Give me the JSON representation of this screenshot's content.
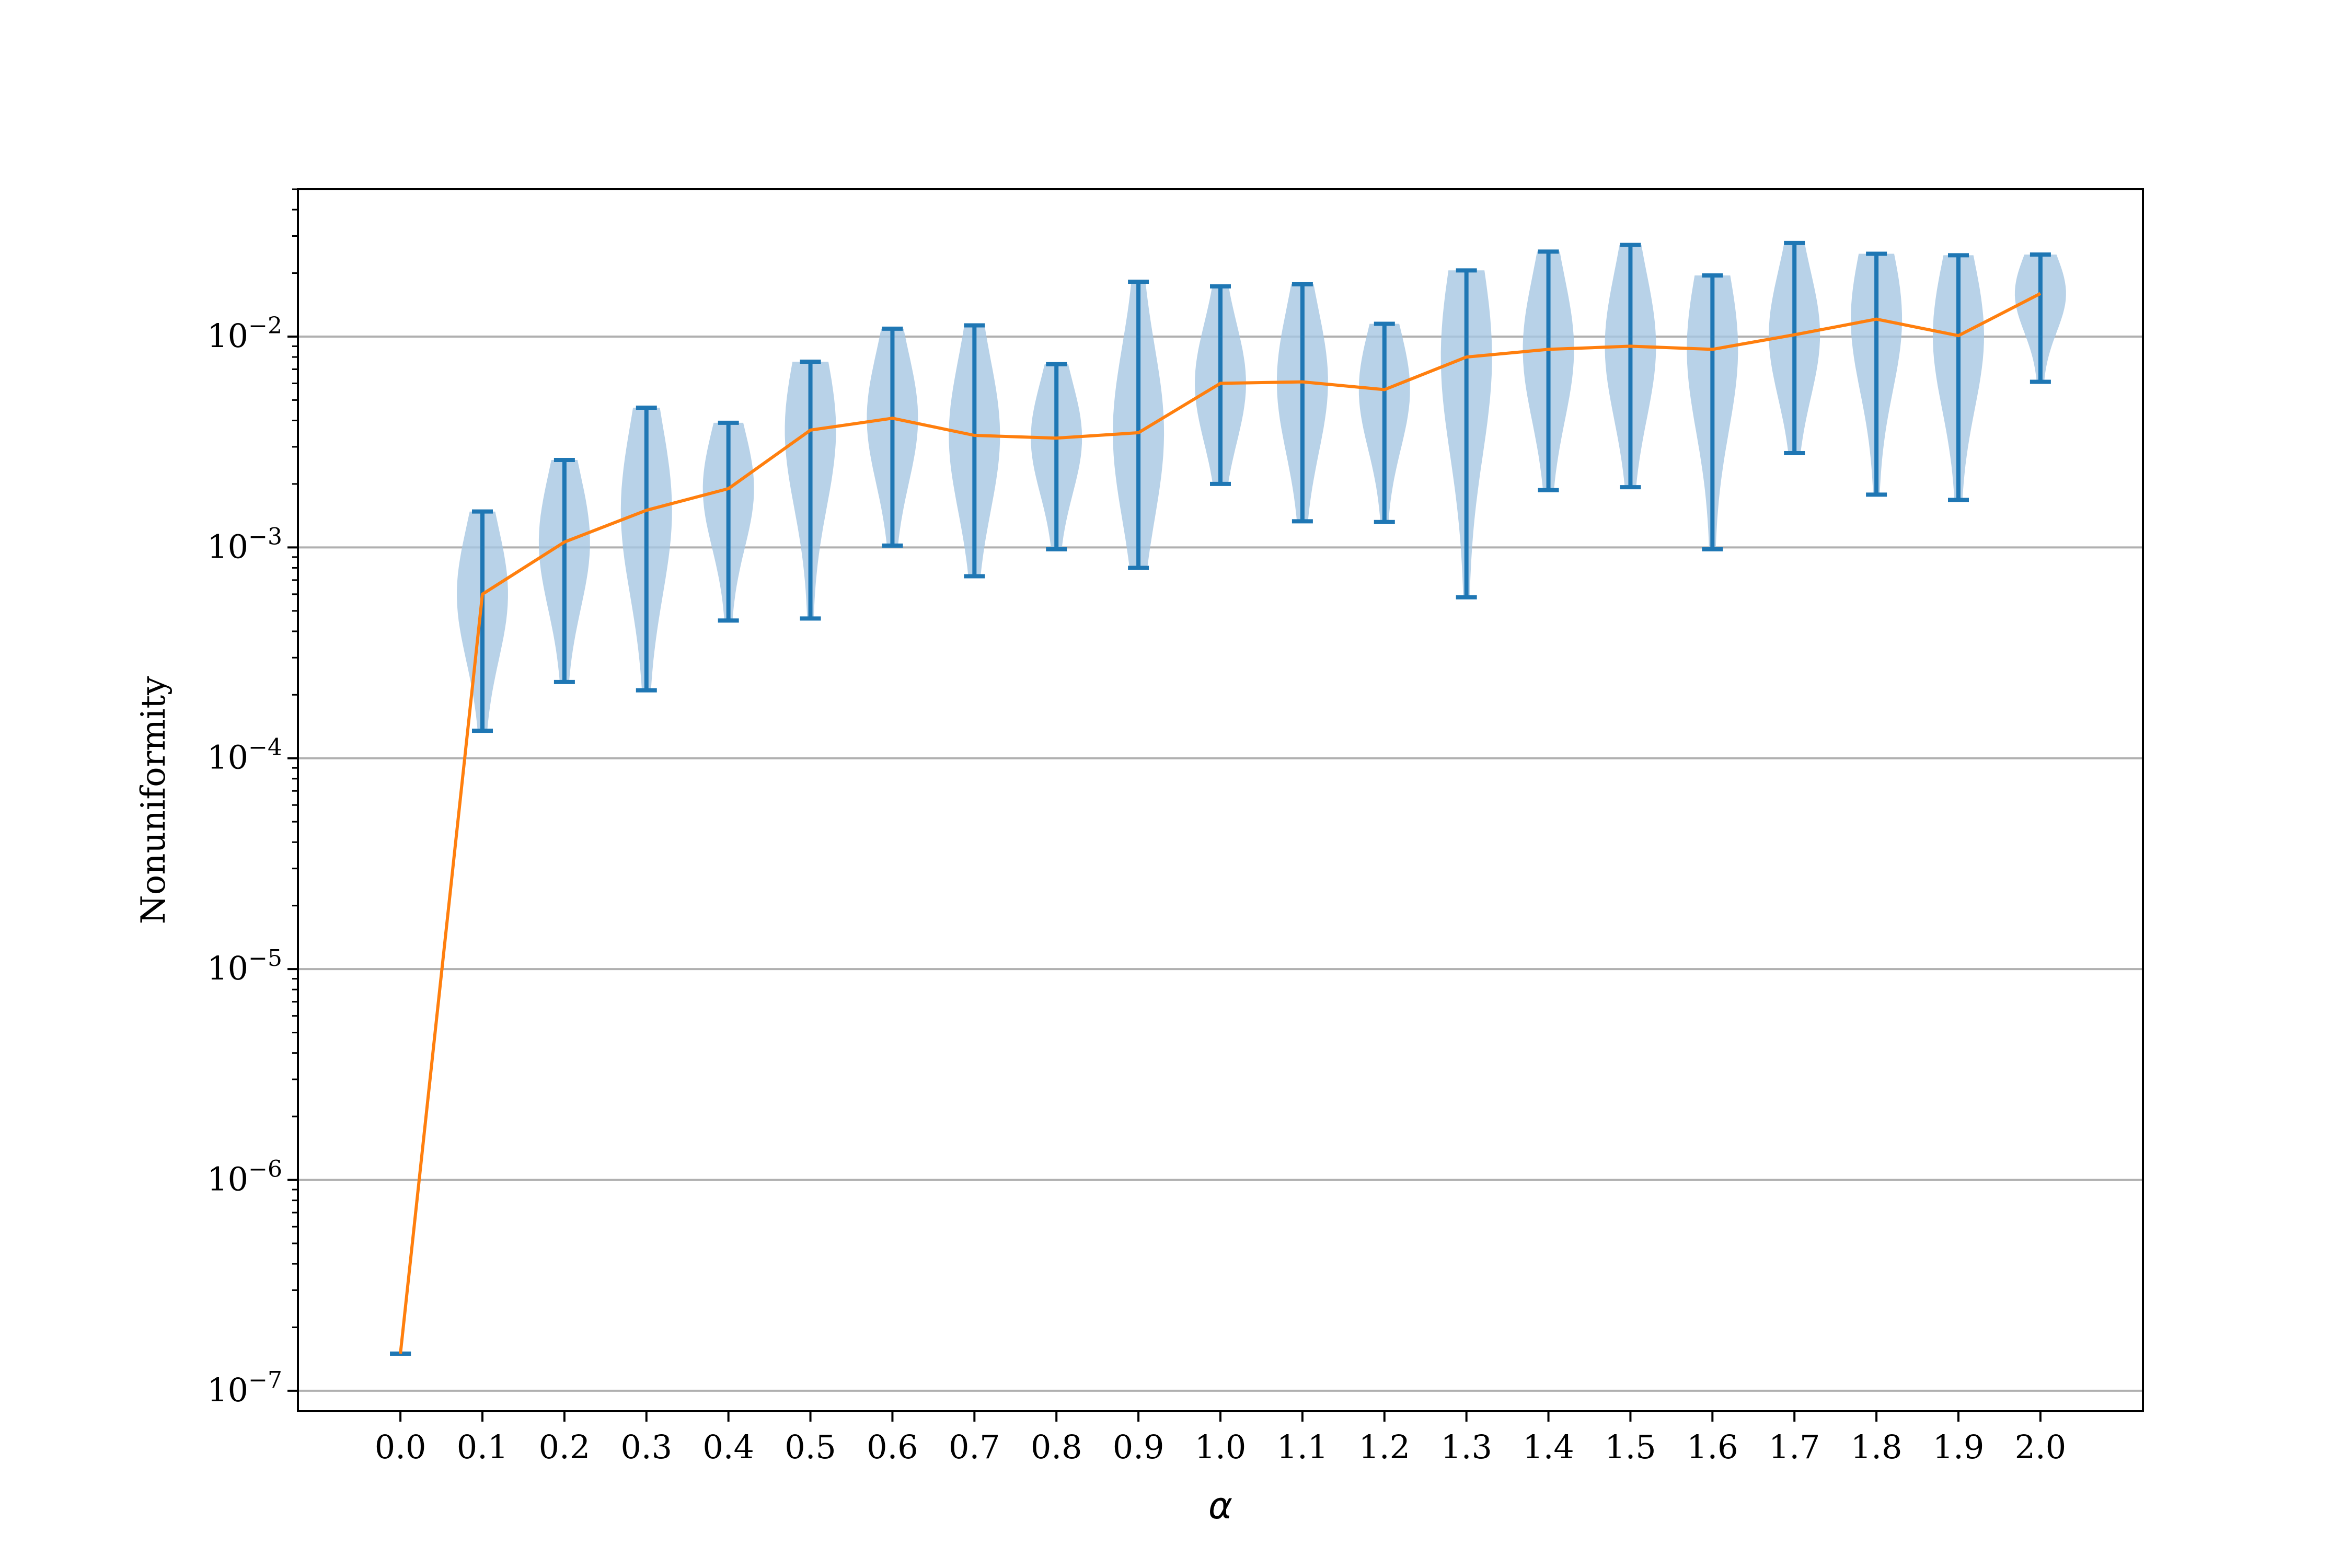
{
  "chart_data": {
    "type": "violin",
    "xlabel": "α",
    "ylabel": "Nonuniformity",
    "yscale": "log",
    "ylim": [
      8e-08,
      0.05
    ],
    "xlim": [
      -0.125,
      2.125
    ],
    "grid": "y-major",
    "categories": [
      "0.0",
      "0.1",
      "0.2",
      "0.3",
      "0.4",
      "0.5",
      "0.6",
      "0.7",
      "0.8",
      "0.9",
      "1.0",
      "1.1",
      "1.2",
      "1.3",
      "1.4",
      "1.5",
      "1.6",
      "1.7",
      "1.8",
      "1.9",
      "2.0"
    ],
    "y_tick_labels": [
      {
        "value": 1e-07,
        "base": "10",
        "exp": "−7"
      },
      {
        "value": 1e-06,
        "base": "10",
        "exp": "−6"
      },
      {
        "value": 1e-05,
        "base": "10",
        "exp": "−5"
      },
      {
        "value": 0.0001,
        "base": "10",
        "exp": "−4"
      },
      {
        "value": 0.001,
        "base": "10",
        "exp": "−3"
      },
      {
        "value": 0.01,
        "base": "10",
        "exp": "−2"
      }
    ],
    "series": [
      {
        "kind": "violin",
        "color": "#1f77b4",
        "fill": "#a6c7e2",
        "x": [
          0.0,
          0.1,
          0.2,
          0.3,
          0.4,
          0.5,
          0.6,
          0.7,
          0.8,
          0.9,
          1.0,
          1.1,
          1.2,
          1.3,
          1.4,
          1.5,
          1.6,
          1.7,
          1.8,
          1.9,
          2.0
        ],
        "min": [
          1.5e-07,
          0.000135,
          0.00023,
          0.00021,
          0.00045,
          0.00046,
          0.00102,
          0.00073,
          0.00098,
          0.0008,
          0.002,
          0.00133,
          0.00132,
          0.00058,
          0.00187,
          0.00193,
          0.00098,
          0.0028,
          0.00178,
          0.00168,
          0.0061
        ],
        "max": [
          1.5e-07,
          0.00148,
          0.0026,
          0.0046,
          0.0039,
          0.0076,
          0.0109,
          0.0113,
          0.0074,
          0.0182,
          0.0173,
          0.0177,
          0.0115,
          0.0206,
          0.0253,
          0.0272,
          0.0195,
          0.0278,
          0.0247,
          0.0243,
          0.0245
        ],
        "mean": [
          1.5e-07,
          0.0006,
          0.00106,
          0.0015,
          0.0019,
          0.0036,
          0.0041,
          0.0034,
          0.0033,
          0.0035,
          0.006,
          0.0061,
          0.0056,
          0.008,
          0.0087,
          0.009,
          0.0087,
          0.0102,
          0.0121,
          0.0101,
          0.016
        ]
      },
      {
        "kind": "line",
        "color": "#ff7f0e",
        "x": [
          0.0,
          0.1,
          0.2,
          0.3,
          0.4,
          0.5,
          0.6,
          0.7,
          0.8,
          0.9,
          1.0,
          1.1,
          1.2,
          1.3,
          1.4,
          1.5,
          1.6,
          1.7,
          1.8,
          1.9,
          2.0
        ],
        "y": [
          1.5e-07,
          0.0006,
          0.00106,
          0.0015,
          0.0019,
          0.0036,
          0.0041,
          0.0034,
          0.0033,
          0.0035,
          0.006,
          0.0061,
          0.0056,
          0.008,
          0.0087,
          0.009,
          0.0087,
          0.0102,
          0.0121,
          0.0101,
          0.016
        ]
      }
    ]
  }
}
